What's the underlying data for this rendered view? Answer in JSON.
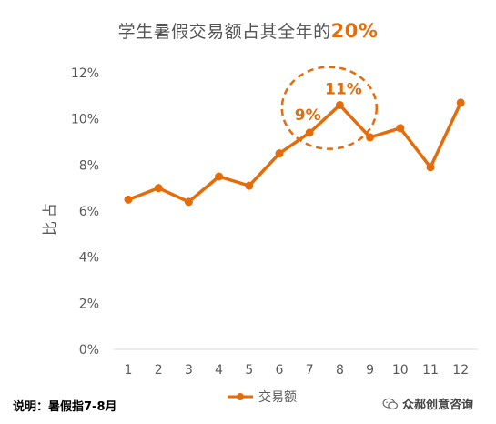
{
  "chart_data": {
    "type": "line",
    "title": "学生暑假交易额占其全年的",
    "title_highlight": "20%",
    "ylabel": "占比",
    "xlabel": "",
    "categories": [
      "1",
      "2",
      "3",
      "4",
      "5",
      "6",
      "7",
      "8",
      "9",
      "10",
      "11",
      "12"
    ],
    "series": [
      {
        "name": "交易额",
        "values": [
          6.5,
          7.0,
          6.4,
          7.5,
          7.1,
          8.5,
          9.4,
          10.6,
          9.2,
          9.6,
          7.9,
          10.7
        ]
      }
    ],
    "ylim": [
      0,
      12
    ],
    "yticks": [
      0,
      2,
      4,
      6,
      8,
      10,
      12
    ],
    "ytick_labels": [
      "0%",
      "2%",
      "4%",
      "6%",
      "8%",
      "10%",
      "12%"
    ],
    "grid": false,
    "legend": "bottom",
    "annotations": [
      {
        "text": "9%",
        "category": "7"
      },
      {
        "text": "11%",
        "category": "8"
      }
    ],
    "colors": {
      "line": "#E46C0A",
      "axis": "#D9D9D9",
      "text": "#595959"
    }
  },
  "footer": {
    "note": "说明：暑假指7-8月",
    "watermark": "众郝创意咨询"
  }
}
